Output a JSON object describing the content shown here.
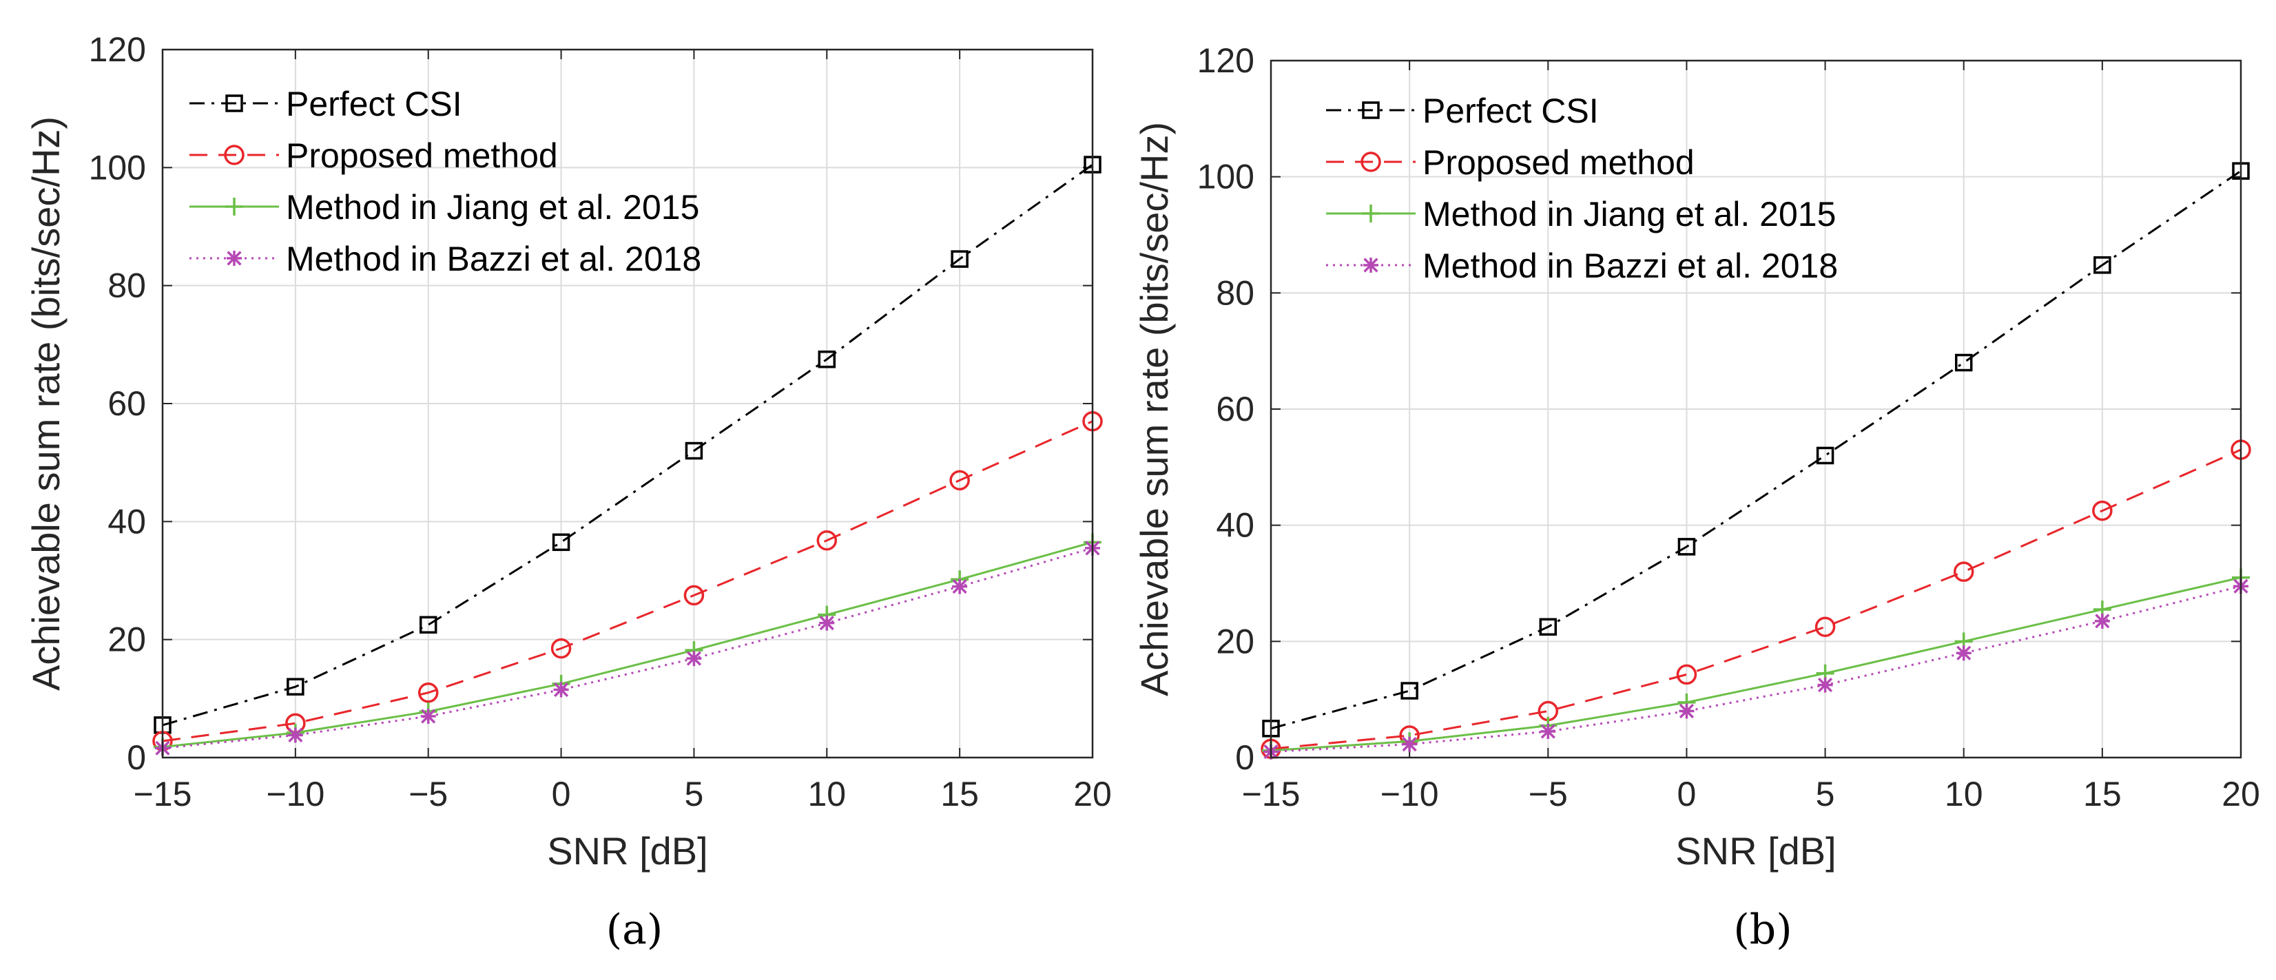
{
  "chart_data": [
    {
      "type": "line",
      "caption": "(a)",
      "xlabel": "SNR [dB]",
      "ylabel": "Achievable sum rate (bits/sec/Hz)",
      "xlim": [
        -15,
        20
      ],
      "ylim": [
        0,
        120
      ],
      "xticks": [
        "−15",
        "−10",
        "−5",
        "0",
        "5",
        "10",
        "15",
        "20"
      ],
      "yticks": [
        "0",
        "20",
        "40",
        "60",
        "80",
        "100",
        "120"
      ],
      "grid": true,
      "legend_position": "top-left",
      "x": [
        -15,
        -10,
        -5,
        0,
        5,
        10,
        15,
        20
      ],
      "series": [
        {
          "name": "Perfect CSI",
          "color": "#000000",
          "marker": "square",
          "dash": "dashdot",
          "values": [
            5.5,
            12,
            22.5,
            36.5,
            52,
            67.5,
            84.5,
            100.5
          ]
        },
        {
          "name": "Proposed method",
          "color": "#e8262b",
          "marker": "circle",
          "dash": "dashed",
          "values": [
            2.8,
            5.8,
            11,
            18.5,
            27.5,
            36.8,
            47,
            57
          ]
        },
        {
          "name": "Method in Jiang et al. 2015",
          "color": "#6bbf47",
          "marker": "plus",
          "dash": "solid",
          "values": [
            1.8,
            4.2,
            7.8,
            12.5,
            18.2,
            24.2,
            30.2,
            36.5
          ]
        },
        {
          "name": "Method in Bazzi et al. 2018",
          "color": "#b548b5",
          "marker": "asterisk",
          "dash": "dotted",
          "values": [
            1.6,
            3.8,
            7,
            11.5,
            16.8,
            22.8,
            29,
            35.5
          ]
        }
      ]
    },
    {
      "type": "line",
      "caption": "(b)",
      "xlabel": "SNR [dB]",
      "ylabel": "Achievable sum rate (bits/sec/Hz)",
      "xlim": [
        -15,
        20
      ],
      "ylim": [
        0,
        120
      ],
      "xticks": [
        "−15",
        "−10",
        "−5",
        "0",
        "5",
        "10",
        "15",
        "20"
      ],
      "yticks": [
        "0",
        "20",
        "40",
        "60",
        "80",
        "100",
        "120"
      ],
      "grid": true,
      "legend_position": "top-left",
      "x": [
        -15,
        -10,
        -5,
        0,
        5,
        10,
        15,
        20
      ],
      "series": [
        {
          "name": "Perfect CSI",
          "color": "#000000",
          "marker": "square",
          "dash": "dashdot",
          "values": [
            5,
            11.5,
            22.5,
            36.3,
            52,
            68,
            84.8,
            101
          ]
        },
        {
          "name": "Proposed method",
          "color": "#e8262b",
          "marker": "circle",
          "dash": "dashed",
          "values": [
            1.5,
            3.8,
            8,
            14.3,
            22.5,
            32,
            42.5,
            53
          ]
        },
        {
          "name": "Method in Jiang et al. 2015",
          "color": "#6bbf47",
          "marker": "plus",
          "dash": "solid",
          "values": [
            1.2,
            2.8,
            5.5,
            9.5,
            14.5,
            20,
            25.5,
            31
          ]
        },
        {
          "name": "Method in Bazzi et al. 2018",
          "color": "#b548b5",
          "marker": "asterisk",
          "dash": "dotted",
          "values": [
            1,
            2.3,
            4.5,
            8,
            12.5,
            18,
            23.5,
            29.5
          ]
        }
      ]
    }
  ]
}
